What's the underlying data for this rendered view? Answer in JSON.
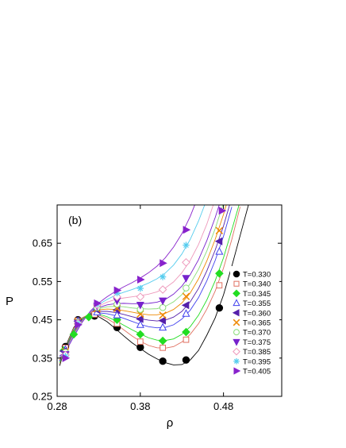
{
  "chart_data": {
    "type": "line",
    "title": "",
    "panel_label": "(b)",
    "xlabel": "ρ",
    "ylabel": "P",
    "xlim": [
      0.28,
      0.55
    ],
    "ylim": [
      0.25,
      0.75
    ],
    "x_ticks": [
      "0.28",
      "0.38",
      "0.48"
    ],
    "x_tick_values": [
      0.28,
      0.38,
      0.48
    ],
    "y_ticks": [
      "0.25",
      "0.35",
      "0.45",
      "0.55",
      "0.65"
    ],
    "y_tick_values": [
      0.25,
      0.35,
      0.45,
      0.55,
      0.65
    ],
    "grid": false,
    "legend_position": "right",
    "series": [
      {
        "name": "T=0.330",
        "color": "#000000",
        "marker": "circle-filled",
        "x": [
          0.29,
          0.305,
          0.325,
          0.352,
          0.38,
          0.407,
          0.435,
          0.475
        ],
        "y": [
          0.38,
          0.45,
          0.46,
          0.43,
          0.378,
          0.342,
          0.345,
          0.481
        ],
        "curve_x": [
          0.283,
          0.29,
          0.3,
          0.31,
          0.32,
          0.33,
          0.34,
          0.35,
          0.36,
          0.37,
          0.38,
          0.39,
          0.4,
          0.41,
          0.42,
          0.43,
          0.44,
          0.45,
          0.46,
          0.47,
          0.48,
          0.49,
          0.5,
          0.51
        ],
        "curve_y": [
          0.33,
          0.38,
          0.43,
          0.455,
          0.465,
          0.458,
          0.445,
          0.427,
          0.408,
          0.39,
          0.375,
          0.36,
          0.348,
          0.338,
          0.332,
          0.333,
          0.345,
          0.37,
          0.41,
          0.455,
          0.515,
          0.59,
          0.67,
          0.75
        ]
      },
      {
        "name": "T=0.340",
        "color": "#e07060",
        "marker": "square-open",
        "x": [
          0.29,
          0.305,
          0.325,
          0.352,
          0.38,
          0.407,
          0.435,
          0.475
        ],
        "y": [
          0.377,
          0.448,
          0.464,
          0.44,
          0.393,
          0.377,
          0.398,
          0.54
        ],
        "curve_x": [
          0.283,
          0.29,
          0.3,
          0.31,
          0.32,
          0.33,
          0.34,
          0.35,
          0.36,
          0.37,
          0.38,
          0.39,
          0.4,
          0.41,
          0.42,
          0.43,
          0.44,
          0.45,
          0.46,
          0.47,
          0.48,
          0.49,
          0.5
        ],
        "curve_y": [
          0.335,
          0.378,
          0.428,
          0.455,
          0.466,
          0.462,
          0.453,
          0.44,
          0.424,
          0.408,
          0.394,
          0.383,
          0.377,
          0.376,
          0.38,
          0.392,
          0.412,
          0.44,
          0.478,
          0.525,
          0.585,
          0.66,
          0.745
        ]
      },
      {
        "name": "T=0.345",
        "color": "#22dd22",
        "marker": "diamond-filled",
        "x": [
          0.288,
          0.3,
          0.318,
          0.352,
          0.38,
          0.407,
          0.435,
          0.475
        ],
        "y": [
          0.37,
          0.412,
          0.457,
          0.45,
          0.412,
          0.395,
          0.418,
          0.571
        ],
        "curve_x": [
          0.283,
          0.29,
          0.3,
          0.31,
          0.32,
          0.33,
          0.34,
          0.35,
          0.36,
          0.37,
          0.38,
          0.39,
          0.4,
          0.41,
          0.42,
          0.43,
          0.44,
          0.45,
          0.46,
          0.47,
          0.48,
          0.49,
          0.5
        ],
        "curve_y": [
          0.338,
          0.376,
          0.424,
          0.452,
          0.466,
          0.465,
          0.458,
          0.448,
          0.436,
          0.424,
          0.413,
          0.403,
          0.397,
          0.396,
          0.4,
          0.412,
          0.432,
          0.462,
          0.502,
          0.552,
          0.612,
          0.685,
          0.76
        ]
      },
      {
        "name": "T=0.355",
        "color": "#4040ee",
        "marker": "triangle-up-open",
        "x": [
          0.29,
          0.305,
          0.328,
          0.352,
          0.38,
          0.407,
          0.435,
          0.475
        ],
        "y": [
          0.372,
          0.447,
          0.47,
          0.462,
          0.437,
          0.43,
          0.466,
          0.628
        ],
        "curve_x": [
          0.283,
          0.29,
          0.3,
          0.31,
          0.32,
          0.33,
          0.34,
          0.35,
          0.36,
          0.37,
          0.38,
          0.39,
          0.4,
          0.41,
          0.42,
          0.43,
          0.44,
          0.45,
          0.46,
          0.47,
          0.48,
          0.49
        ],
        "curve_y": [
          0.342,
          0.374,
          0.42,
          0.45,
          0.466,
          0.468,
          0.466,
          0.461,
          0.454,
          0.446,
          0.438,
          0.432,
          0.429,
          0.43,
          0.437,
          0.452,
          0.475,
          0.508,
          0.552,
          0.605,
          0.668,
          0.745
        ]
      },
      {
        "name": "T=0.360",
        "color": "#5520aa",
        "marker": "triangle-left-filled",
        "x": [
          0.288,
          0.305,
          0.328,
          0.352,
          0.38,
          0.407,
          0.435,
          0.475
        ],
        "y": [
          0.368,
          0.446,
          0.476,
          0.476,
          0.452,
          0.448,
          0.488,
          0.655
        ],
        "curve_x": [
          0.283,
          0.29,
          0.3,
          0.31,
          0.32,
          0.33,
          0.34,
          0.35,
          0.36,
          0.37,
          0.38,
          0.39,
          0.4,
          0.41,
          0.42,
          0.43,
          0.44,
          0.45,
          0.46,
          0.47,
          0.48,
          0.49
        ],
        "curve_y": [
          0.344,
          0.372,
          0.418,
          0.449,
          0.467,
          0.472,
          0.472,
          0.469,
          0.464,
          0.458,
          0.453,
          0.449,
          0.447,
          0.449,
          0.457,
          0.472,
          0.497,
          0.532,
          0.578,
          0.632,
          0.695,
          0.77
        ]
      },
      {
        "name": "T=0.365",
        "color": "#ee8800",
        "marker": "x-cross",
        "x": [
          0.29,
          0.305,
          0.328,
          0.352,
          0.38,
          0.407,
          0.435,
          0.475
        ],
        "y": [
          0.367,
          0.445,
          0.479,
          0.48,
          0.465,
          0.462,
          0.511,
          0.683
        ],
        "curve_x": [
          0.283,
          0.29,
          0.3,
          0.31,
          0.32,
          0.33,
          0.34,
          0.35,
          0.36,
          0.37,
          0.38,
          0.39,
          0.4,
          0.41,
          0.42,
          0.43,
          0.44,
          0.45,
          0.46,
          0.47,
          0.48,
          0.49
        ],
        "curve_y": [
          0.346,
          0.371,
          0.416,
          0.448,
          0.468,
          0.476,
          0.478,
          0.477,
          0.474,
          0.47,
          0.466,
          0.463,
          0.463,
          0.467,
          0.477,
          0.494,
          0.52,
          0.557,
          0.604,
          0.66,
          0.725,
          0.8
        ]
      },
      {
        "name": "T=0.370",
        "color": "#88dd77",
        "marker": "circle-open",
        "x": [
          0.29,
          0.305,
          0.328,
          0.352,
          0.38,
          0.407,
          0.435
        ],
        "y": [
          0.365,
          0.444,
          0.482,
          0.491,
          0.477,
          0.482,
          0.533
        ],
        "curve_x": [
          0.283,
          0.29,
          0.3,
          0.31,
          0.32,
          0.33,
          0.34,
          0.35,
          0.36,
          0.37,
          0.38,
          0.39,
          0.4,
          0.41,
          0.42,
          0.43,
          0.44,
          0.45,
          0.46,
          0.47,
          0.48
        ],
        "curve_y": [
          0.348,
          0.37,
          0.414,
          0.447,
          0.469,
          0.479,
          0.484,
          0.485,
          0.484,
          0.481,
          0.479,
          0.478,
          0.479,
          0.485,
          0.497,
          0.516,
          0.544,
          0.582,
          0.63,
          0.688,
          0.755
        ]
      },
      {
        "name": "T=0.375",
        "color": "#7722cc",
        "marker": "triangle-down-filled",
        "x": [
          0.29,
          0.305,
          0.328,
          0.352,
          0.38,
          0.407,
          0.435
        ],
        "y": [
          0.36,
          0.442,
          0.486,
          0.5,
          0.489,
          0.5,
          0.559
        ],
        "curve_x": [
          0.283,
          0.29,
          0.3,
          0.31,
          0.32,
          0.33,
          0.34,
          0.35,
          0.36,
          0.37,
          0.38,
          0.39,
          0.4,
          0.41,
          0.42,
          0.43,
          0.44,
          0.45,
          0.46,
          0.47,
          0.48
        ],
        "curve_y": [
          0.35,
          0.369,
          0.412,
          0.446,
          0.47,
          0.482,
          0.489,
          0.492,
          0.493,
          0.492,
          0.492,
          0.493,
          0.496,
          0.503,
          0.517,
          0.538,
          0.568,
          0.607,
          0.657,
          0.717,
          0.785
        ]
      },
      {
        "name": "T=0.385",
        "color": "#ee99bb",
        "marker": "diamond-open",
        "x": [
          0.29,
          0.305,
          0.328,
          0.352,
          0.38,
          0.407,
          0.435
        ],
        "y": [
          0.358,
          0.441,
          0.489,
          0.51,
          0.51,
          0.529,
          0.6
        ],
        "curve_x": [
          0.283,
          0.29,
          0.3,
          0.31,
          0.32,
          0.33,
          0.34,
          0.35,
          0.36,
          0.37,
          0.38,
          0.39,
          0.4,
          0.41,
          0.42,
          0.43,
          0.44,
          0.45,
          0.46,
          0.47
        ],
        "curve_y": [
          0.352,
          0.368,
          0.41,
          0.445,
          0.471,
          0.486,
          0.496,
          0.503,
          0.507,
          0.51,
          0.513,
          0.517,
          0.523,
          0.533,
          0.549,
          0.573,
          0.605,
          0.647,
          0.7,
          0.765
        ]
      },
      {
        "name": "T=0.395",
        "color": "#55ccee",
        "marker": "star",
        "x": [
          0.29,
          0.305,
          0.328,
          0.352,
          0.38,
          0.407,
          0.435
        ],
        "y": [
          0.355,
          0.44,
          0.491,
          0.52,
          0.532,
          0.562,
          0.645
        ],
        "curve_x": [
          0.283,
          0.29,
          0.3,
          0.31,
          0.32,
          0.33,
          0.34,
          0.35,
          0.36,
          0.37,
          0.38,
          0.39,
          0.4,
          0.41,
          0.42,
          0.43,
          0.44,
          0.45,
          0.46
        ],
        "curve_y": [
          0.354,
          0.367,
          0.408,
          0.444,
          0.472,
          0.49,
          0.503,
          0.514,
          0.522,
          0.529,
          0.537,
          0.546,
          0.557,
          0.572,
          0.593,
          0.622,
          0.66,
          0.708,
          0.765
        ]
      },
      {
        "name": "T=0.405",
        "color": "#8822cc",
        "marker": "triangle-right-filled",
        "x": [
          0.29,
          0.305,
          0.328,
          0.352,
          0.38,
          0.407,
          0.435,
          0.478
        ],
        "y": [
          0.35,
          0.437,
          0.493,
          0.527,
          0.555,
          0.598,
          0.685,
          0.735
        ],
        "curve_x": [
          0.283,
          0.29,
          0.3,
          0.31,
          0.32,
          0.33,
          0.34,
          0.35,
          0.36,
          0.37,
          0.38,
          0.39,
          0.4,
          0.41,
          0.42,
          0.43,
          0.44,
          0.45
        ],
        "curve_y": [
          0.356,
          0.366,
          0.406,
          0.443,
          0.473,
          0.494,
          0.51,
          0.524,
          0.536,
          0.547,
          0.559,
          0.573,
          0.59,
          0.612,
          0.64,
          0.675,
          0.72,
          0.775
        ]
      }
    ]
  }
}
